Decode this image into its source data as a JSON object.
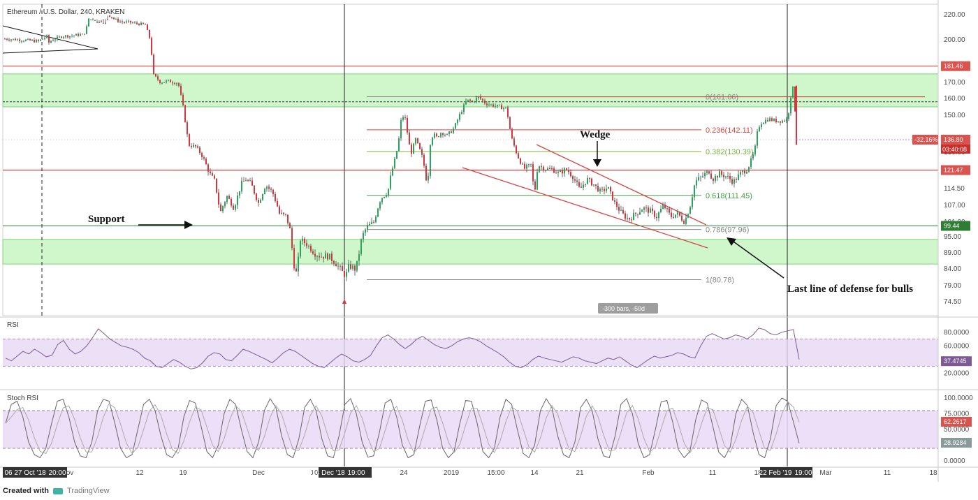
{
  "chart_data": {
    "type": "candlestick",
    "title": "Ethereum / U.S. Dollar, 240, KRAKEN",
    "y_axis_ticks": [
      "220.00",
      "200.00",
      "170.00",
      "160.00",
      "150.00",
      "130.00",
      "121.00",
      "114.50",
      "107.00",
      "101.00",
      "95.00",
      "89.00",
      "84.00",
      "79.00",
      "74.50"
    ],
    "x_axis_ticks": [
      "06",
      "27 Oct '18",
      "20:00",
      "ov",
      "12",
      "19",
      "Dec",
      "10",
      "14 Dec '18",
      "19:00",
      "24",
      "2019",
      "15:00",
      "14",
      "21",
      "Feb",
      "11",
      "18",
      "22 Feb '19",
      "19:00",
      "Mar",
      "11",
      "18"
    ],
    "ohlc_path": [
      [
        0,
        201
      ],
      [
        30,
        200
      ],
      [
        55,
        199
      ],
      [
        68,
        203
      ],
      [
        70,
        198
      ],
      [
        75,
        200
      ],
      [
        90,
        203
      ],
      [
        100,
        203
      ],
      [
        112,
        204
      ],
      [
        120,
        204
      ],
      [
        124,
        210
      ],
      [
        130,
        224
      ],
      [
        140,
        226
      ],
      [
        148,
        226
      ],
      [
        155,
        220
      ],
      [
        165,
        216
      ],
      [
        175,
        214
      ],
      [
        185,
        214
      ],
      [
        195,
        213
      ],
      [
        208,
        212
      ],
      [
        215,
        200
      ],
      [
        220,
        175
      ],
      [
        230,
        170
      ],
      [
        240,
        171
      ],
      [
        250,
        170
      ],
      [
        255,
        170
      ],
      [
        262,
        155
      ],
      [
        270,
        134
      ],
      [
        280,
        133
      ],
      [
        290,
        128
      ],
      [
        300,
        120
      ],
      [
        308,
        117
      ],
      [
        315,
        104
      ],
      [
        325,
        111
      ],
      [
        335,
        106
      ],
      [
        345,
        116
      ],
      [
        352,
        118
      ],
      [
        360,
        116
      ],
      [
        370,
        108
      ],
      [
        380,
        116
      ],
      [
        390,
        113
      ],
      [
        400,
        104
      ],
      [
        410,
        103
      ],
      [
        415,
        98
      ],
      [
        420,
        86
      ],
      [
        425,
        82
      ],
      [
        430,
        94
      ],
      [
        440,
        92
      ],
      [
        450,
        89
      ],
      [
        458,
        88
      ],
      [
        470,
        88
      ],
      [
        480,
        86
      ],
      [
        490,
        83
      ],
      [
        495,
        82
      ],
      [
        500,
        85
      ],
      [
        508,
        84
      ],
      [
        512,
        86
      ],
      [
        518,
        95
      ],
      [
        525,
        99
      ],
      [
        535,
        101
      ],
      [
        545,
        110
      ],
      [
        555,
        113
      ],
      [
        560,
        120
      ],
      [
        565,
        126
      ],
      [
        570,
        134
      ],
      [
        575,
        150
      ],
      [
        580,
        148
      ],
      [
        588,
        129
      ],
      [
        595,
        137
      ],
      [
        605,
        127
      ],
      [
        612,
        115
      ],
      [
        616,
        135
      ],
      [
        620,
        140
      ],
      [
        625,
        138
      ],
      [
        632,
        141
      ],
      [
        640,
        139
      ],
      [
        650,
        143
      ],
      [
        660,
        152
      ],
      [
        668,
        159
      ],
      [
        676,
        158
      ],
      [
        685,
        161
      ],
      [
        695,
        157
      ],
      [
        705,
        156
      ],
      [
        715,
        155
      ],
      [
        725,
        154
      ],
      [
        732,
        138
      ],
      [
        740,
        129
      ],
      [
        750,
        122
      ],
      [
        760,
        124
      ],
      [
        765,
        112
      ],
      [
        770,
        124
      ],
      [
        780,
        122
      ],
      [
        790,
        122
      ],
      [
        800,
        120
      ],
      [
        810,
        122
      ],
      [
        820,
        119
      ],
      [
        830,
        114
      ],
      [
        840,
        118
      ],
      [
        850,
        116
      ],
      [
        860,
        113
      ],
      [
        870,
        115
      ],
      [
        880,
        108
      ],
      [
        890,
        104
      ],
      [
        900,
        102
      ],
      [
        910,
        104
      ],
      [
        920,
        106
      ],
      [
        930,
        105
      ],
      [
        940,
        103
      ],
      [
        950,
        107
      ],
      [
        960,
        103
      ],
      [
        970,
        104
      ],
      [
        980,
        101
      ],
      [
        988,
        107
      ],
      [
        995,
        117
      ],
      [
        1000,
        118
      ],
      [
        1010,
        120
      ],
      [
        1015,
        121
      ],
      [
        1020,
        118
      ],
      [
        1030,
        120
      ],
      [
        1040,
        119
      ],
      [
        1050,
        117
      ],
      [
        1060,
        120
      ],
      [
        1070,
        122
      ],
      [
        1080,
        130
      ],
      [
        1085,
        143
      ],
      [
        1090,
        146
      ],
      [
        1100,
        148
      ],
      [
        1110,
        147
      ],
      [
        1120,
        147
      ],
      [
        1128,
        148
      ],
      [
        1131,
        160
      ],
      [
        1136,
        168
      ],
      [
        1140,
        138
      ]
    ],
    "fibonacci": [
      {
        "level": "0",
        "label": "0(161.06)",
        "value": 161.06,
        "color": "#888888"
      },
      {
        "level": "0.236",
        "label": "0.236(142.11)",
        "value": 142.11,
        "color": "#d64545"
      },
      {
        "level": "0.382",
        "label": "0.382(130.39)",
        "value": 130.39,
        "color": "#7cb342"
      },
      {
        "level": "0.5",
        "label": "",
        "value": 121.47,
        "color": "#d64545"
      },
      {
        "level": "0.618",
        "label": "0.618(111.45)",
        "value": 111.45,
        "color": "#43a047"
      },
      {
        "level": "0.786",
        "label": "0.786(97.96)",
        "value": 97.96,
        "color": "#888888"
      },
      {
        "level": "1",
        "label": "1(80.78)",
        "value": 80.78,
        "color": "#888888"
      }
    ],
    "support_zones": [
      {
        "from": 155.0,
        "to": 176.0
      },
      {
        "from": 85.5,
        "to": 94.0
      }
    ],
    "horizontal_levels": [
      {
        "value": 181.46,
        "color": "#d64545"
      },
      {
        "value": 158.0,
        "color": "#333333",
        "style": "dashed"
      },
      {
        "value": 121.47,
        "color": "#d64545"
      },
      {
        "value": 99.44,
        "color": "#2e7d32"
      }
    ],
    "price_labels": {
      "resistance": "181.46",
      "current": "136.80",
      "countdown": "03:40:08",
      "change": "-32.16%",
      "mid": "121.47",
      "support": "99.44"
    },
    "annotations": {
      "wedge": "Wedge",
      "support": "Support",
      "last_line": "Last line of defense for bulls",
      "range": "-300 bars, -50d"
    },
    "rsi": {
      "title": "RSI",
      "ticks": [
        "80.0000",
        "60.0000",
        "20.0000"
      ],
      "upper": 70,
      "lower": 30,
      "value_label": "37.4745",
      "values": [
        42,
        38,
        45,
        52,
        48,
        55,
        50,
        44,
        46,
        62,
        68,
        55,
        48,
        52,
        60,
        72,
        85,
        78,
        70,
        65,
        60,
        58,
        55,
        50,
        42,
        38,
        30,
        28,
        34,
        40,
        36,
        30,
        26,
        28,
        35,
        45,
        50,
        48,
        40,
        38,
        46,
        55,
        52,
        48,
        44,
        40,
        35,
        42,
        50,
        55,
        52,
        46,
        40,
        34,
        30,
        28,
        35,
        42,
        48,
        44,
        38,
        36,
        40,
        46,
        60,
        72,
        76,
        70,
        62,
        56,
        62,
        70,
        74,
        68,
        62,
        58,
        56,
        60,
        66,
        70,
        72,
        70,
        66,
        60,
        55,
        50,
        44,
        36,
        30,
        28,
        32,
        40,
        45,
        42,
        40,
        38,
        36,
        40,
        44,
        42,
        38,
        36,
        34,
        38,
        42,
        40,
        44,
        38,
        32,
        28,
        34,
        40,
        45,
        42,
        44,
        46,
        50,
        48,
        44,
        42,
        60,
        74,
        78,
        74,
        70,
        72,
        76,
        74,
        70,
        76,
        86,
        84,
        78,
        76,
        80,
        82,
        84,
        40
      ]
    },
    "stoch_rsi": {
      "title": "Stoch RSI",
      "ticks": [
        "100.0000",
        "75.0000",
        "50.0000",
        "0.0000"
      ],
      "upper": 80,
      "lower": 20,
      "k_label": "62.2617",
      "d_label": "28.9284",
      "values": [
        60,
        90,
        95,
        70,
        30,
        10,
        5,
        20,
        60,
        95,
        98,
        70,
        30,
        8,
        5,
        30,
        80,
        98,
        95,
        60,
        20,
        5,
        10,
        50,
        90,
        98,
        80,
        40,
        10,
        5,
        20,
        70,
        96,
        92,
        55,
        15,
        5,
        25,
        75,
        98,
        90,
        50,
        15,
        5,
        30,
        80,
        99,
        85,
        40,
        10,
        5,
        35,
        85,
        98,
        80,
        35,
        8,
        5,
        40,
        90,
        99,
        75,
        30,
        6,
        8,
        45,
        92,
        98,
        70,
        25,
        5,
        10,
        55,
        95,
        97,
        65,
        20,
        5,
        15,
        60,
        96,
        95,
        60,
        15,
        5,
        20,
        70,
        98,
        90,
        50,
        12,
        5,
        25,
        80,
        99,
        85,
        40,
        10,
        5,
        30,
        85,
        98,
        80,
        35,
        8,
        5,
        40,
        90,
        99,
        75,
        28,
        5,
        10,
        50,
        94,
        96,
        62,
        18,
        5,
        15,
        65,
        97,
        92,
        55,
        14,
        5,
        22,
        75,
        98,
        88,
        45,
        10,
        5,
        35,
        88,
        100,
        95,
        62,
        28
      ]
    }
  },
  "footer": {
    "created_with": "Created with",
    "brand": "TradingView"
  }
}
